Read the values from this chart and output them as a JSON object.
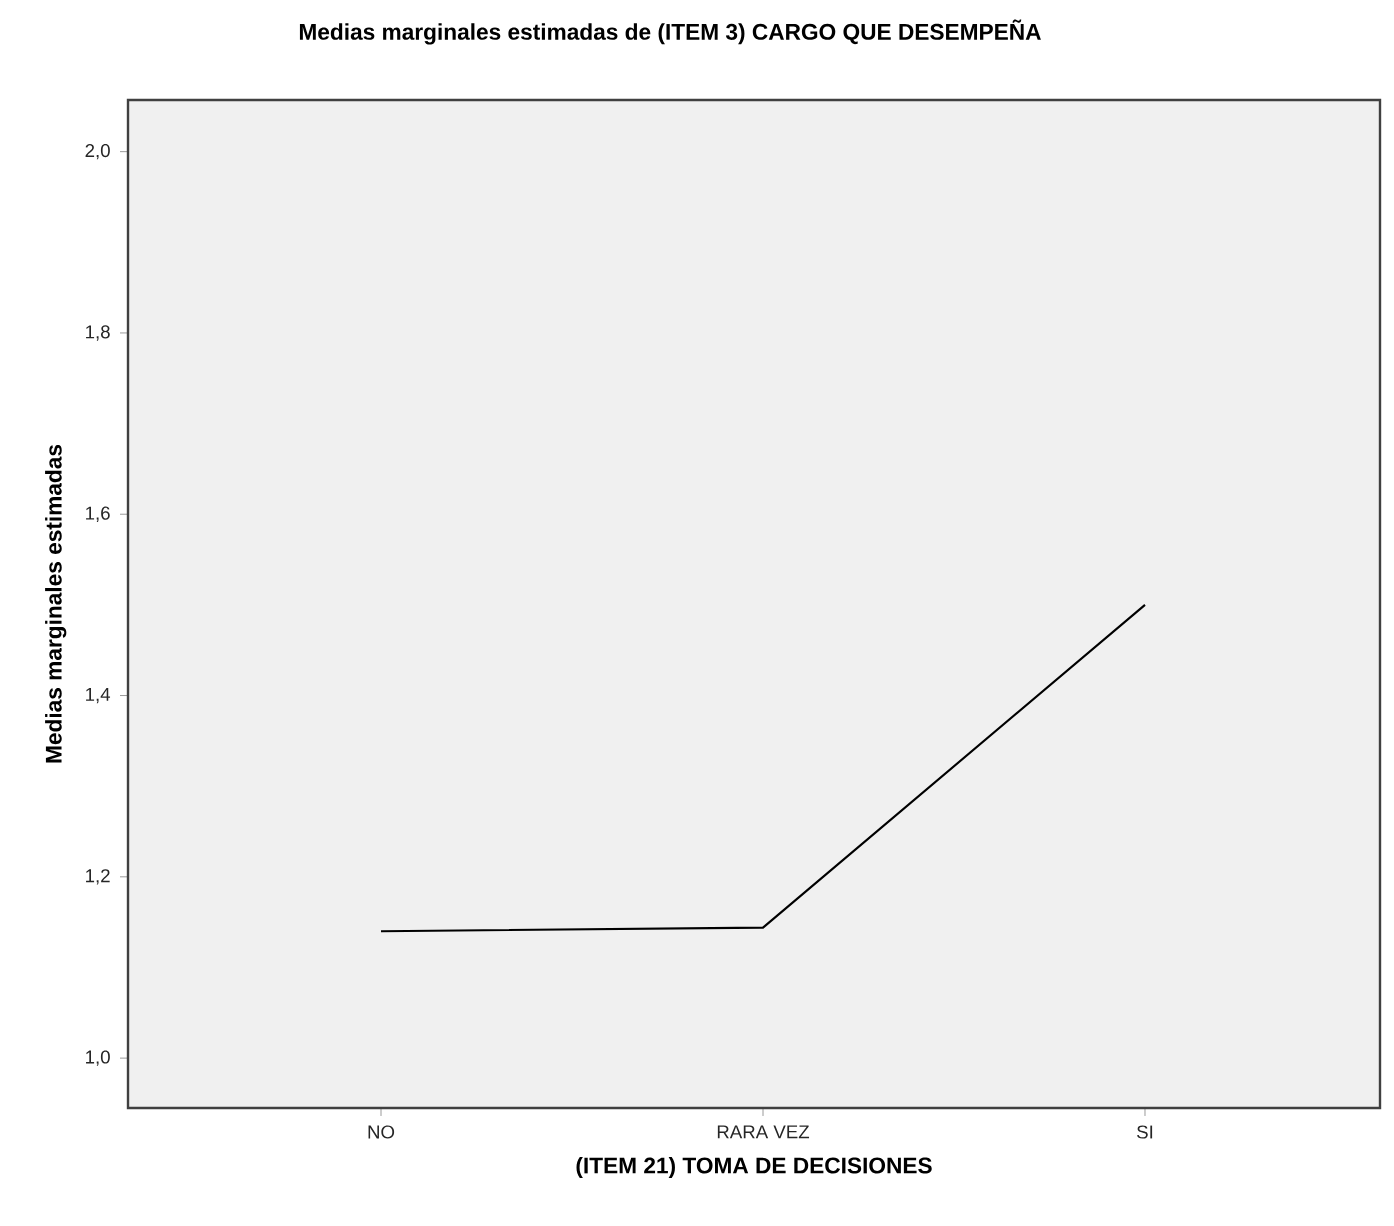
{
  "chart_data": {
    "type": "line",
    "title": "Medias marginales estimadas de (ITEM 3) CARGO QUE DESEMPEÑA",
    "xlabel": "(ITEM 21) TOMA DE DECISIONES",
    "ylabel": "Medias marginales estimadas",
    "categories": [
      "NO",
      "RARA VEZ",
      "SI"
    ],
    "series": [
      {
        "color": "#000000",
        "values": [
          1.14,
          1.144,
          1.5
        ]
      }
    ],
    "ylim": [
      0.945,
      2.057
    ],
    "yticks": [
      {
        "value": 1.0,
        "label": "1,0"
      },
      {
        "value": 1.2,
        "label": "1,2"
      },
      {
        "value": 1.4,
        "label": "1,4"
      },
      {
        "value": 1.6,
        "label": "1,6"
      },
      {
        "value": 1.8,
        "label": "1,8"
      },
      {
        "value": 2.0,
        "label": "2,0"
      }
    ]
  }
}
